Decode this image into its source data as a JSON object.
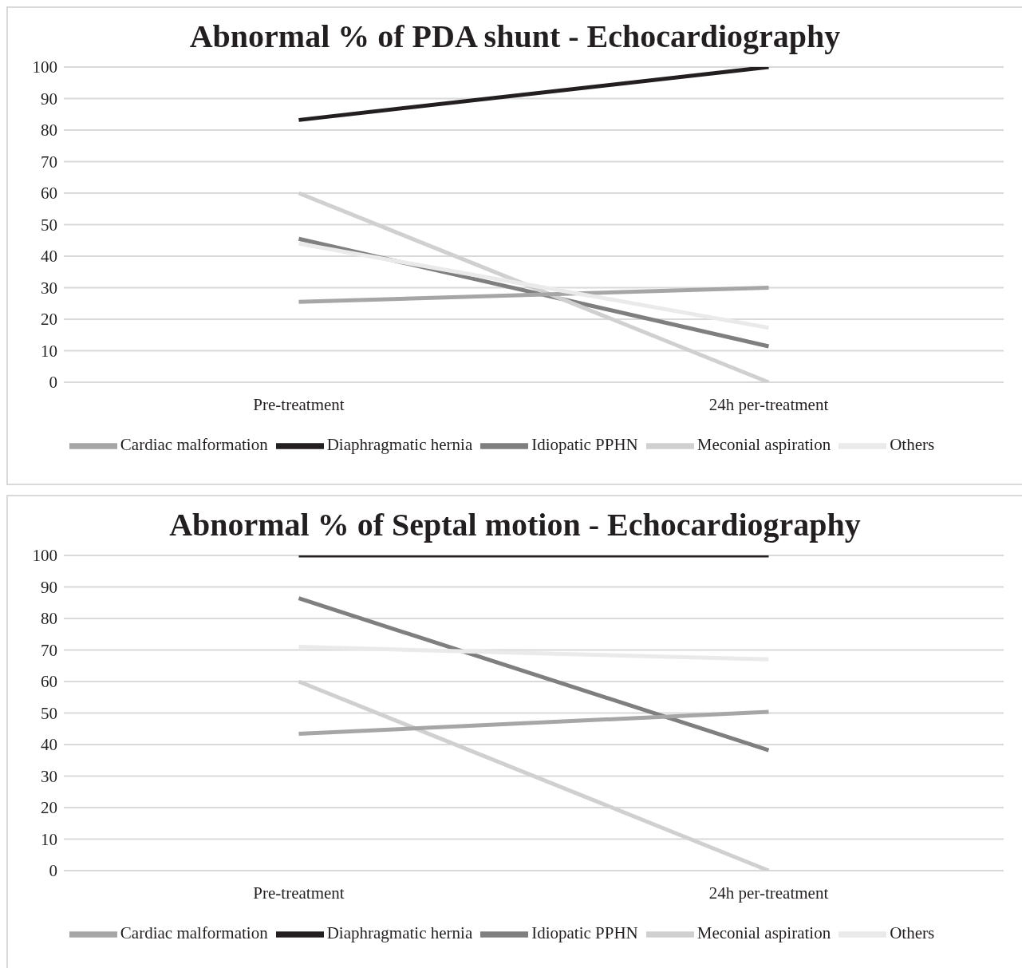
{
  "chart_data": [
    {
      "type": "line",
      "title": "Abnormal % of PDA shunt - Echocardiography",
      "categories": [
        "Pre-treatment",
        "24h per-treatment"
      ],
      "ylim": [
        0,
        100
      ],
      "yticks": [
        0,
        10,
        20,
        30,
        40,
        50,
        60,
        70,
        80,
        90,
        100
      ],
      "grid": "y",
      "legend": "bottom",
      "series": [
        {
          "name": "Idiopatic PPHN",
          "color": "#7f7f7f",
          "values": [
            45.5,
            11.4
          ]
        },
        {
          "name": "Meconial aspiration",
          "color": "#d0d0d0",
          "values": [
            60,
            0
          ]
        },
        {
          "name": "Cardiac malformation",
          "color": "#a6a6a6",
          "values": [
            25.5,
            30
          ]
        },
        {
          "name": "Diaphragmatic hernia",
          "color": "#231f20",
          "values": [
            83.2,
            100
          ]
        },
        {
          "name": "Others",
          "color": "#eaeaea",
          "values": [
            44,
            17.3
          ]
        }
      ]
    },
    {
      "type": "line",
      "title": "Abnormal % of Septal motion - Echocardiography",
      "categories": [
        "Pre-treatment",
        "24h per-treatment"
      ],
      "ylim": [
        0,
        100
      ],
      "yticks": [
        0,
        10,
        20,
        30,
        40,
        50,
        60,
        70,
        80,
        90,
        100
      ],
      "grid": "y",
      "legend": "bottom",
      "series": [
        {
          "name": "Idiopatic PPHN",
          "color": "#7f7f7f",
          "values": [
            86.4,
            38.2
          ]
        },
        {
          "name": "Meconial aspiration",
          "color": "#d0d0d0",
          "values": [
            60,
            0
          ]
        },
        {
          "name": "Cardiac malformation",
          "color": "#a6a6a6",
          "values": [
            43.4,
            50.4
          ]
        },
        {
          "name": "Diaphragmatic hernia",
          "color": "#231f20",
          "values": [
            100,
            100
          ]
        },
        {
          "name": "Others",
          "color": "#eaeaea",
          "values": [
            71,
            67
          ]
        }
      ]
    }
  ]
}
